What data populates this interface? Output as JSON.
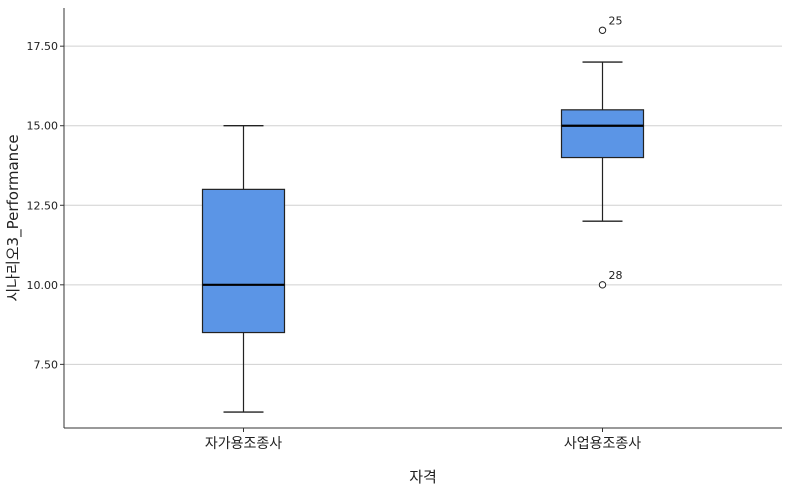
{
  "chart_data": {
    "type": "boxplot",
    "xlabel": "자격",
    "ylabel": "시나리오3_Performance",
    "ylim": [
      5.5,
      18.7
    ],
    "y_ticks": [
      "7.50",
      "10.00",
      "12.50",
      "15.00",
      "17.50"
    ],
    "grid": true,
    "colors": {
      "box_fill": "#5b95e6",
      "box_stroke": "#222222",
      "grid": "#d0d0d0",
      "axis": "#333333"
    },
    "categories": [
      "자가용조종사",
      "사업용조종사"
    ],
    "boxes": [
      {
        "category": "자가용조종사",
        "min": 6.0,
        "q1": 8.5,
        "median": 10.0,
        "q3": 13.0,
        "max": 15.0,
        "outliers": []
      },
      {
        "category": "사업용조종사",
        "min": 12.0,
        "q1": 14.0,
        "median": 15.0,
        "q3": 15.5,
        "max": 17.0,
        "outliers": [
          {
            "value": 18.0,
            "label": "25"
          },
          {
            "value": 10.0,
            "label": "28"
          }
        ]
      }
    ]
  }
}
